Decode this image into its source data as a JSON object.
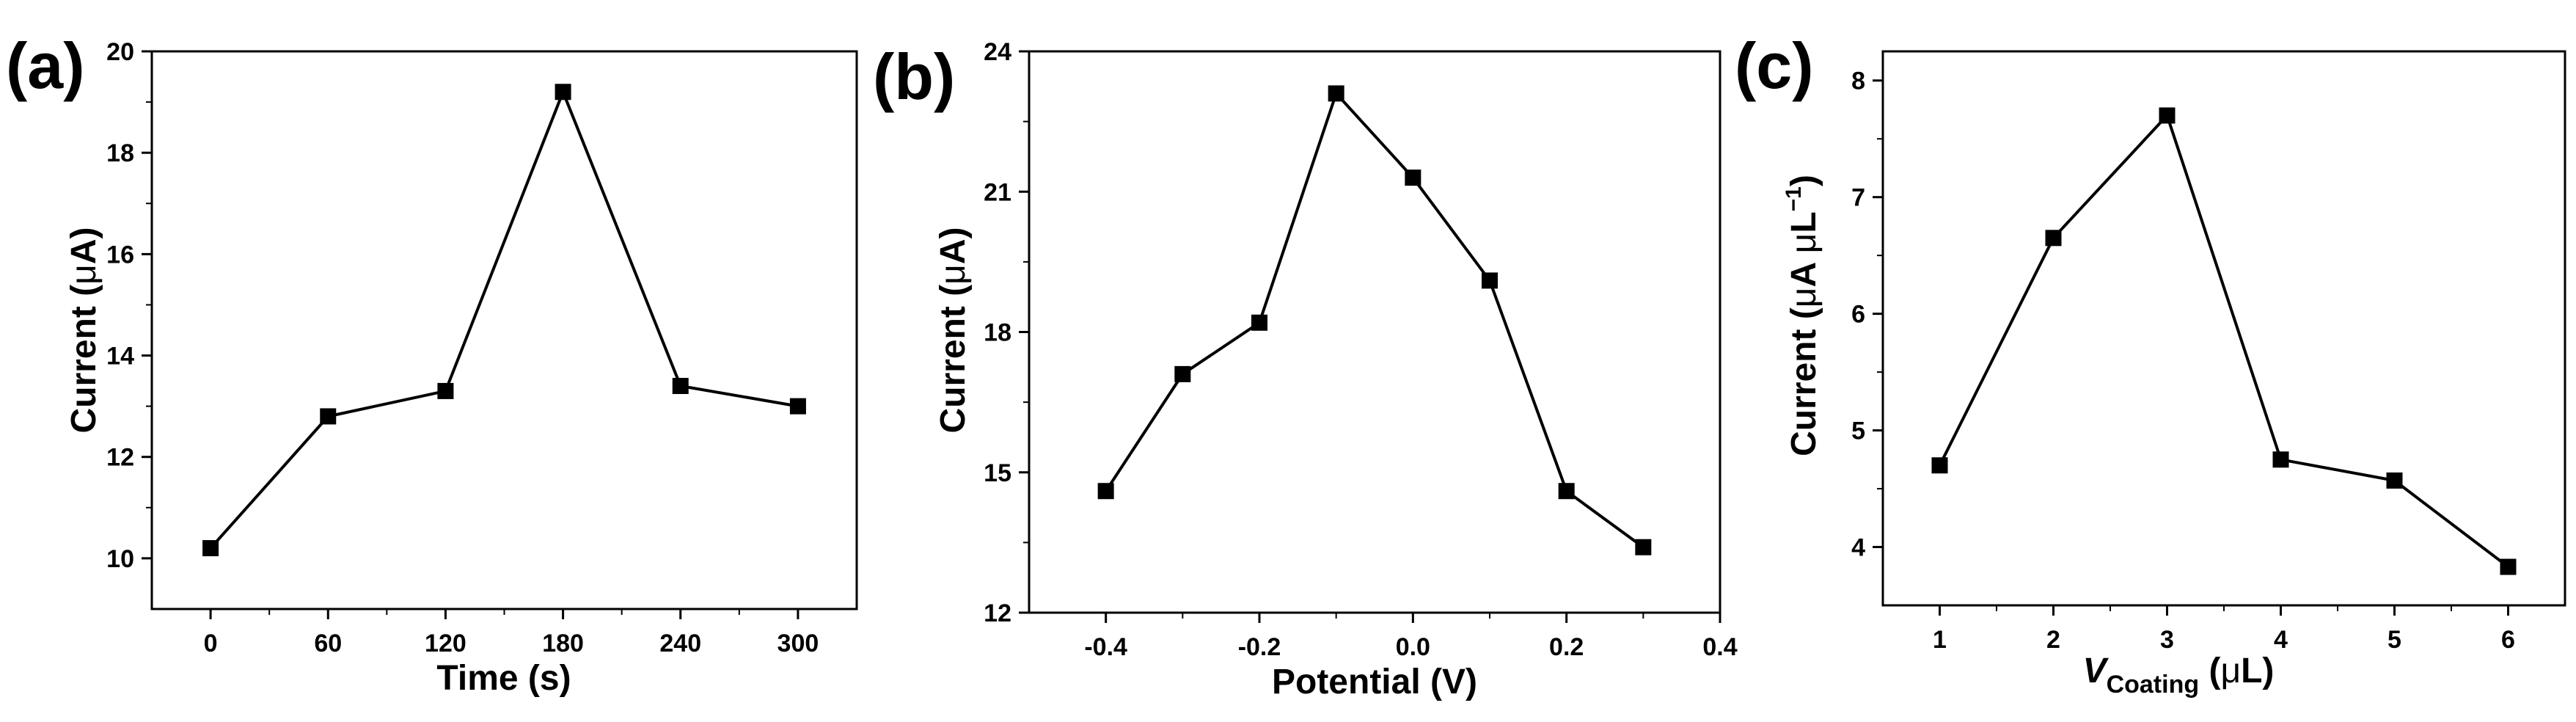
{
  "chart_data": [
    {
      "type": "line",
      "panel_label": "(a)",
      "title": "",
      "xlabel": "Time (s)",
      "ylabel": "Current (μA)",
      "ylabel_parts": {
        "main": "Current (",
        "greek": "μ",
        "rest": "A)"
      },
      "x": [
        0,
        60,
        120,
        180,
        240,
        300
      ],
      "values": [
        10.2,
        12.8,
        13.3,
        19.2,
        13.4,
        13.0
      ],
      "xlim": [
        -30,
        330
      ],
      "ylim": [
        9,
        20
      ],
      "xticks": [
        0,
        60,
        120,
        180,
        240,
        300
      ],
      "xtick_labels": [
        "0",
        "60",
        "120",
        "180",
        "240",
        "300"
      ],
      "yticks": [
        10,
        12,
        14,
        16,
        18,
        20
      ],
      "ytick_labels": [
        "10",
        "12",
        "14",
        "16",
        "18",
        "20"
      ],
      "marker": "square",
      "color": "#000000"
    },
    {
      "type": "line",
      "panel_label": "(b)",
      "title": "",
      "xlabel": "Potential (V)",
      "ylabel": "Current (μA)",
      "ylabel_parts": {
        "main": "Current (",
        "greek": "μ",
        "rest": "A)"
      },
      "x": [
        -0.4,
        -0.3,
        -0.2,
        -0.1,
        0.0,
        0.1,
        0.2,
        0.3
      ],
      "values": [
        14.6,
        17.1,
        18.2,
        23.1,
        21.3,
        19.1,
        14.6,
        13.4
      ],
      "xlim": [
        -0.5,
        0.4
      ],
      "ylim": [
        12,
        24
      ],
      "xticks": [
        -0.4,
        -0.2,
        0.0,
        0.2,
        0.4
      ],
      "xtick_labels": [
        "-0.4",
        "-0.2",
        "0.0",
        "0.2",
        "0.4"
      ],
      "yticks": [
        12,
        15,
        18,
        21,
        24
      ],
      "ytick_labels": [
        "12",
        "15",
        "18",
        "21",
        "24"
      ],
      "marker": "square",
      "color": "#000000"
    },
    {
      "type": "line",
      "panel_label": "(c)",
      "title": "",
      "xlabel": "VCoating (μL)",
      "xlabel_parts": {
        "v": "V",
        "sub": "Coating",
        "rest_open": " (",
        "greek": "μ",
        "rest": "L)"
      },
      "ylabel": "Current (μA μL⁻¹)",
      "ylabel_parts": {
        "main": "Current (",
        "greek1": "μ",
        "mid": "A ",
        "greek2": "μ",
        "unit": "L",
        "sup": "−1",
        "close": ")"
      },
      "x": [
        1,
        2,
        3,
        4,
        5,
        6
      ],
      "values": [
        4.7,
        6.65,
        7.7,
        4.75,
        4.57,
        3.83
      ],
      "xlim": [
        0.5,
        6.5
      ],
      "ylim": [
        3.5,
        8.25
      ],
      "xticks": [
        1,
        2,
        3,
        4,
        5,
        6
      ],
      "xtick_labels": [
        "1",
        "2",
        "3",
        "4",
        "5",
        "6"
      ],
      "yticks": [
        4,
        5,
        6,
        7,
        8
      ],
      "ytick_labels": [
        "4",
        "5",
        "6",
        "7",
        "8"
      ],
      "marker": "square",
      "color": "#000000"
    }
  ]
}
